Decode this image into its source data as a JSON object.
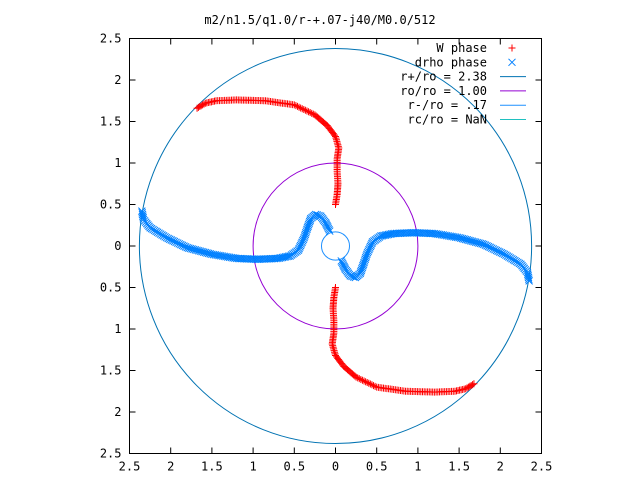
{
  "chart_data": {
    "type": "scatter",
    "title": "m2/n1.5/q1.0/r-+.07-j40/M0.0/512",
    "xlabel": "",
    "ylabel": "",
    "xlim": [
      -2.5,
      2.5
    ],
    "ylim": [
      -2.5,
      2.5
    ],
    "xticks": [
      -2.5,
      -2,
      -1.5,
      -1,
      -0.5,
      0,
      0.5,
      1,
      1.5,
      2,
      2.5
    ],
    "yticks": [
      -2.5,
      -2,
      -1.5,
      -1,
      -0.5,
      0,
      0.5,
      1,
      1.5,
      2,
      2.5
    ],
    "xtick_labels": [
      "2.5",
      "2",
      "1.5",
      "1",
      "0.5",
      "0",
      "0.5",
      "1",
      "1.5",
      "2",
      "2.5"
    ],
    "ytick_labels": [
      "2.5",
      "2",
      "1.5",
      "1",
      "0.5",
      "0",
      "0.5",
      "1",
      "1.5",
      "2",
      "2.5"
    ],
    "grid": false,
    "legend_position": "top-right",
    "series": [
      {
        "name": "W phase",
        "marker": "plus",
        "color": "#ff0000",
        "arms": [
          [
            [
              0.0,
              0.5
            ],
            [
              0.02,
              0.62
            ],
            [
              0.03,
              0.75
            ],
            [
              0.02,
              0.9
            ],
            [
              0.02,
              1.05
            ],
            [
              0.04,
              1.18
            ],
            [
              0.0,
              1.32
            ],
            [
              -0.1,
              1.45
            ],
            [
              -0.25,
              1.58
            ],
            [
              -0.5,
              1.7
            ],
            [
              -0.85,
              1.75
            ],
            [
              -1.2,
              1.76
            ],
            [
              -1.45,
              1.75
            ],
            [
              -1.58,
              1.72
            ],
            [
              -1.68,
              1.66
            ]
          ],
          [
            [
              0.0,
              -0.5
            ],
            [
              -0.02,
              -0.62
            ],
            [
              -0.03,
              -0.75
            ],
            [
              -0.02,
              -0.9
            ],
            [
              -0.02,
              -1.05
            ],
            [
              -0.04,
              -1.18
            ],
            [
              0.0,
              -1.32
            ],
            [
              0.1,
              -1.45
            ],
            [
              0.25,
              -1.58
            ],
            [
              0.5,
              -1.7
            ],
            [
              0.85,
              -1.75
            ],
            [
              1.2,
              -1.76
            ],
            [
              1.45,
              -1.75
            ],
            [
              1.58,
              -1.72
            ],
            [
              1.68,
              -1.66
            ]
          ]
        ]
      },
      {
        "name": "drho phase",
        "marker": "cross",
        "color": "#0080ff",
        "arms": [
          [
            [
              -0.07,
              0.18
            ],
            [
              -0.12,
              0.28
            ],
            [
              -0.18,
              0.36
            ],
            [
              -0.24,
              0.38
            ],
            [
              -0.3,
              0.33
            ],
            [
              -0.34,
              0.22
            ],
            [
              -0.38,
              0.1
            ],
            [
              -0.45,
              -0.05
            ],
            [
              -0.55,
              -0.12
            ],
            [
              -0.7,
              -0.15
            ],
            [
              -0.95,
              -0.16
            ],
            [
              -1.2,
              -0.15
            ],
            [
              -1.5,
              -0.1
            ],
            [
              -1.8,
              -0.02
            ],
            [
              -2.05,
              0.1
            ],
            [
              -2.25,
              0.22
            ],
            [
              -2.33,
              0.32
            ],
            [
              -2.35,
              0.42
            ]
          ],
          [
            [
              0.07,
              -0.18
            ],
            [
              0.12,
              -0.28
            ],
            [
              0.18,
              -0.36
            ],
            [
              0.24,
              -0.38
            ],
            [
              0.3,
              -0.33
            ],
            [
              0.34,
              -0.22
            ],
            [
              0.38,
              -0.1
            ],
            [
              0.45,
              0.05
            ],
            [
              0.55,
              0.12
            ],
            [
              0.7,
              0.15
            ],
            [
              0.95,
              0.16
            ],
            [
              1.2,
              0.15
            ],
            [
              1.5,
              0.1
            ],
            [
              1.8,
              0.02
            ],
            [
              2.05,
              -0.1
            ],
            [
              2.25,
              -0.22
            ],
            [
              2.33,
              -0.32
            ],
            [
              2.35,
              -0.42
            ]
          ]
        ]
      },
      {
        "name": "r+/ro = 2.38",
        "type": "circle",
        "radius": 2.38,
        "color": "#0072b2"
      },
      {
        "name": "ro/ro = 1.00",
        "type": "circle",
        "radius": 1.0,
        "color": "#9400d3"
      },
      {
        "name": "r-/ro = .17",
        "type": "circle",
        "radius": 0.17,
        "color": "#1e90ff"
      },
      {
        "name": "rc/ro = NaN",
        "type": "circle",
        "radius": null,
        "color": "#20c0c0"
      }
    ]
  }
}
